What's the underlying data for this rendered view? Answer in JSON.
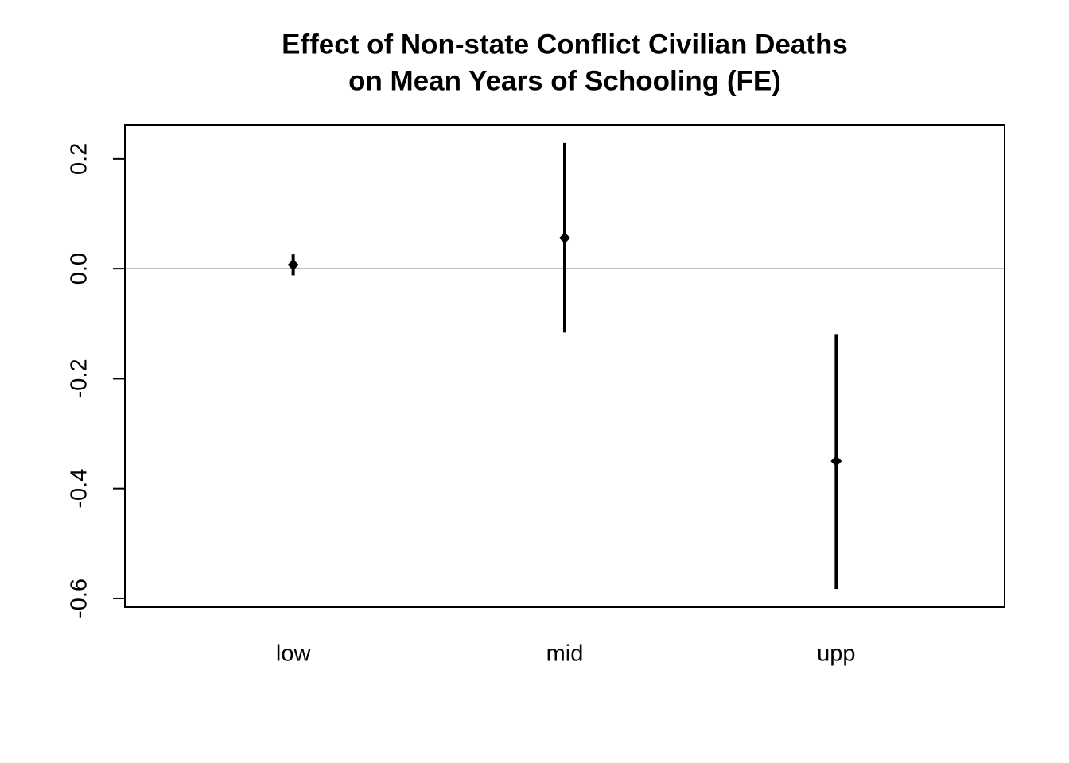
{
  "chart_data": {
    "type": "pointrange",
    "title": [
      "Effect of Non-state Conflict Civilian Deaths",
      "on Mean Years of Schooling (FE)"
    ],
    "categories": [
      "low",
      "mid",
      "upp"
    ],
    "values": [
      0.007,
      0.056,
      -0.35
    ],
    "lower": [
      -0.012,
      -0.116,
      -0.583
    ],
    "upper": [
      0.026,
      0.229,
      -0.119
    ],
    "color": "#000000",
    "ylim": [
      -0.616,
      0.262
    ],
    "yticks": [
      0.2,
      {
        "value": 0,
        "label": "0.0"
      },
      -0.2,
      -0.4,
      -0.6
    ],
    "hline": 0,
    "hline_color": "#808080"
  }
}
